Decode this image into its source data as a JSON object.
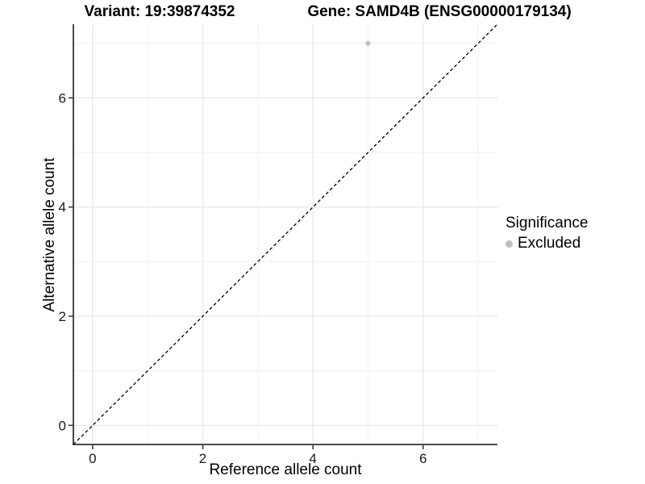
{
  "chart_data": {
    "type": "scatter",
    "title_left": "Variant: 19:39874352",
    "title_right": "Gene: SAMD4B (ENSG00000179134)",
    "xlabel": "Reference allele count",
    "ylabel": "Alternative allele count",
    "x_ticks": [
      0,
      2,
      4,
      6
    ],
    "x_minor": [
      1,
      3,
      5,
      7
    ],
    "y_ticks": [
      0,
      2,
      4,
      6
    ],
    "y_minor": [
      1,
      3,
      5,
      7
    ],
    "xlim": [
      -0.35,
      7.35
    ],
    "ylim": [
      -0.35,
      7.35
    ],
    "grid": "major+minor",
    "reference_line": {
      "style": "dashed",
      "slope": 1,
      "intercept": 0,
      "color": "#000000"
    },
    "series": [
      {
        "name": "Excluded",
        "color": "#bebebe",
        "points": [
          {
            "x": 5,
            "y": 7
          }
        ]
      }
    ],
    "legend": {
      "position": "right",
      "title": "Significance",
      "items": [
        {
          "label": "Excluded",
          "color": "#bebebe"
        }
      ]
    }
  },
  "colors": {
    "background": "#ffffff",
    "grid_major": "#e6e6e6",
    "grid_minor": "#f1f1f1",
    "axis": "#333333",
    "tick_text": "#1a1a1a",
    "point": "#bebebe"
  }
}
